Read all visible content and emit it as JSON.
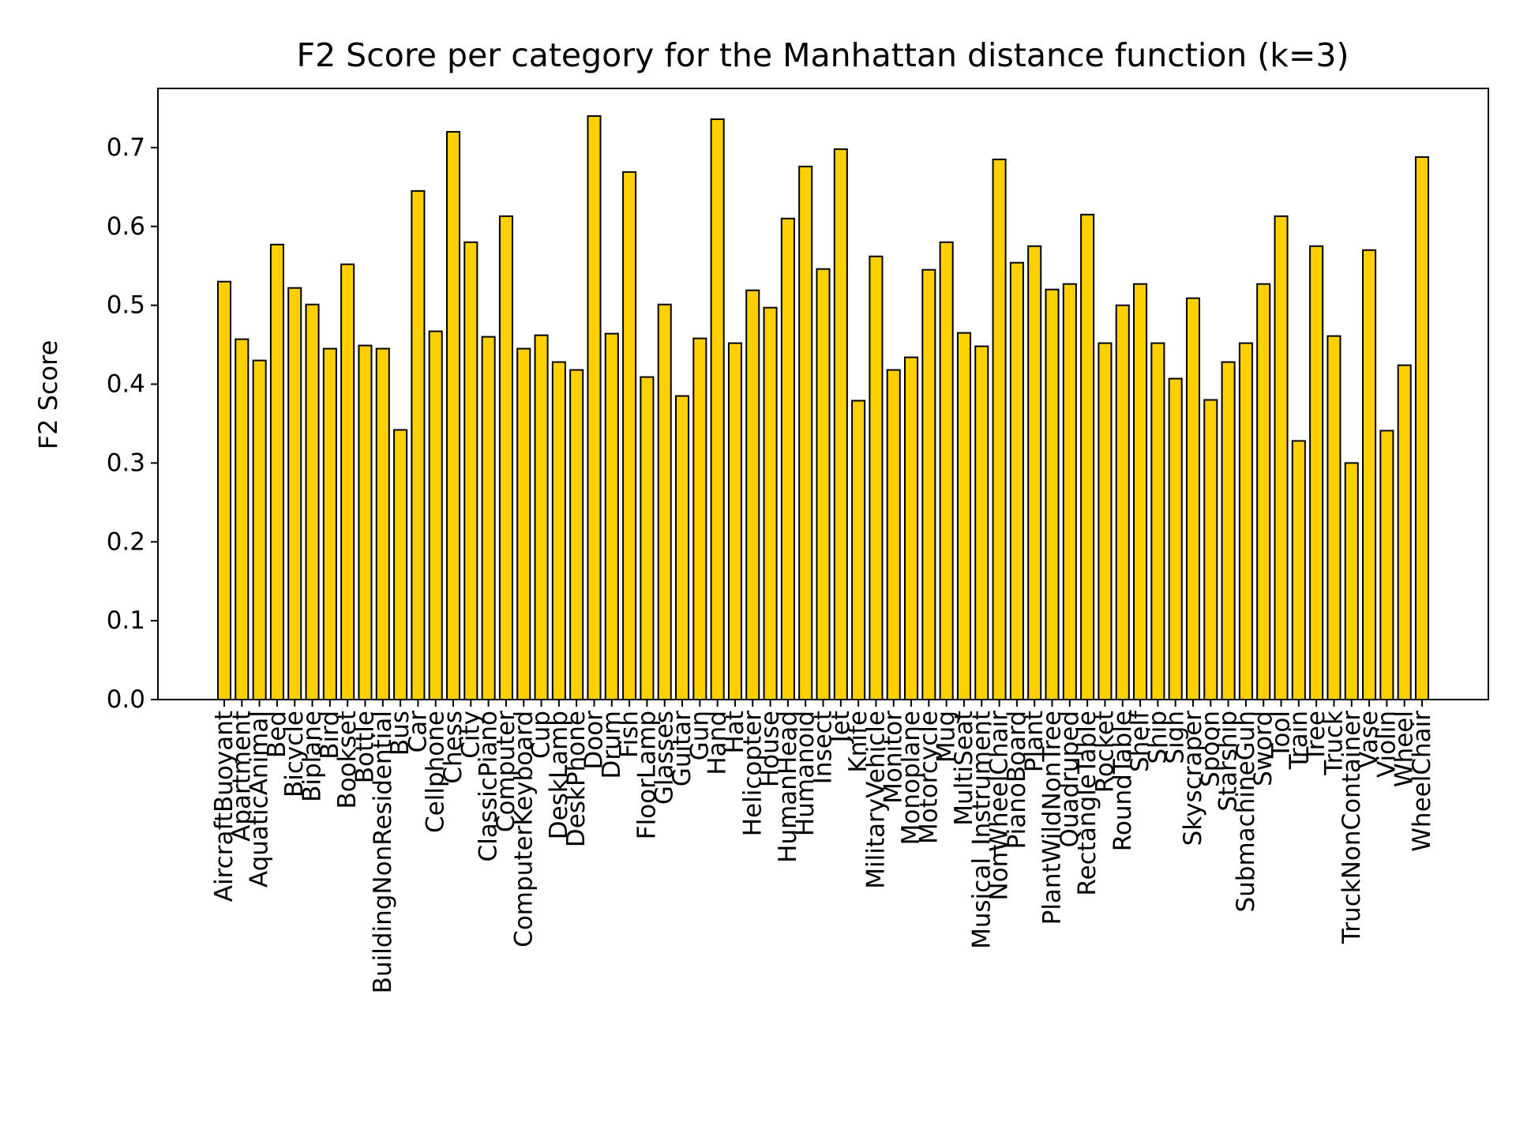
{
  "chart_data": {
    "type": "bar",
    "title": "F2 Score per category for the Manhattan distance function (k=3)",
    "xlabel": "",
    "ylabel": "F2 Score",
    "ylim": [
      0,
      0.775
    ],
    "yticks": [
      "0.0",
      "0.1",
      "0.2",
      "0.3",
      "0.4",
      "0.5",
      "0.6",
      "0.7"
    ],
    "bar_color": "#FFD000",
    "edge_color": "#000000",
    "grid": false,
    "categories": [
      "AircraftBuoyant",
      "Apartment",
      "AquaticAnimal",
      "Bed",
      "Bicycle",
      "Biplane",
      "Bird",
      "Bookset",
      "Bottle",
      "BuildingNonResidential",
      "Bus",
      "Car",
      "Cellphone",
      "Chess",
      "City",
      "ClassicPiano",
      "Computer",
      "ComputerKeyboard",
      "Cup",
      "DeskLamp",
      "DeskPhone",
      "Door",
      "Drum",
      "Fish",
      "FloorLamp",
      "Glasses",
      "Guitar",
      "Gun",
      "Hand",
      "Hat",
      "Helicopter",
      "House",
      "HumanHead",
      "Humanoid",
      "Insect",
      "Jet",
      "Knife",
      "MilitaryVehicle",
      "Monitor",
      "Monoplane",
      "Motorcycle",
      "Mug",
      "MultiSeat",
      "Musical_Instrument",
      "NonWheelChair",
      "PianoBoard",
      "Plant",
      "PlantWildNonTree",
      "Quadruped",
      "RectangleTable",
      "Rocket",
      "RoundTable",
      "Shelf",
      "Ship",
      "Sign",
      "Skyscraper",
      "Spoon",
      "Starship",
      "SubmachineGun",
      "Sword",
      "Tool",
      "Train",
      "Tree",
      "Truck",
      "TruckNonContainer",
      "Vase",
      "Violin",
      "Wheel",
      "WheelChair"
    ],
    "values": [
      0.53,
      0.457,
      0.43,
      0.577,
      0.522,
      0.501,
      0.445,
      0.552,
      0.449,
      0.445,
      0.342,
      0.645,
      0.467,
      0.72,
      0.58,
      0.46,
      0.613,
      0.445,
      0.462,
      0.428,
      0.418,
      0.74,
      0.464,
      0.669,
      0.409,
      0.501,
      0.385,
      0.458,
      0.736,
      0.452,
      0.519,
      0.497,
      0.61,
      0.676,
      0.546,
      0.698,
      0.379,
      0.562,
      0.418,
      0.434,
      0.545,
      0.58,
      0.465,
      0.448,
      0.685,
      0.554,
      0.575,
      0.52,
      0.527,
      0.615,
      0.452,
      0.5,
      0.527,
      0.452,
      0.407,
      0.509,
      0.38,
      0.428,
      0.452,
      0.527,
      0.613,
      0.328,
      0.575,
      0.461,
      0.3,
      0.57,
      0.341,
      0.424,
      0.688
    ]
  }
}
